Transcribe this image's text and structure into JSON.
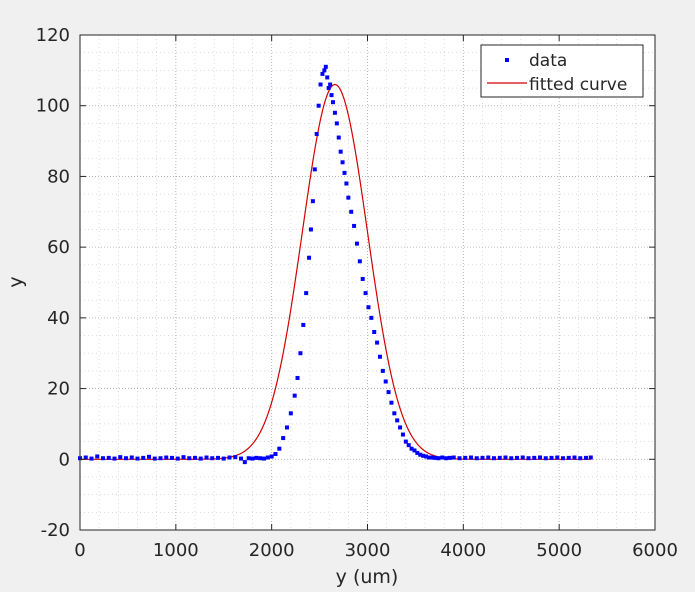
{
  "chart_data": {
    "type": "scatter",
    "title": "",
    "xlabel": "y (um)",
    "ylabel": "y",
    "xlim": [
      0,
      6000
    ],
    "ylim": [
      -20,
      120
    ],
    "xticks": [
      0,
      1000,
      2000,
      3000,
      4000,
      5000,
      6000
    ],
    "yticks": [
      -20,
      0,
      20,
      40,
      60,
      80,
      100,
      120
    ],
    "xtick_labels": [
      "0",
      "1000",
      "2000",
      "3000",
      "4000",
      "5000",
      "6000"
    ],
    "ytick_labels": [
      "-20",
      "0",
      "20",
      "40",
      "60",
      "80",
      "100",
      "120"
    ],
    "grid": true,
    "minor_grid": true,
    "legend_position": "top-right",
    "series": [
      {
        "name": "data",
        "style": "points",
        "color": "#0000ff",
        "x": [
          0,
          60,
          120,
          180,
          240,
          300,
          360,
          420,
          480,
          540,
          600,
          660,
          720,
          780,
          840,
          900,
          960,
          1020,
          1080,
          1140,
          1200,
          1260,
          1320,
          1380,
          1440,
          1500,
          1560,
          1620,
          1680,
          1720,
          1760,
          1800,
          1840,
          1880,
          1920,
          1960,
          2000,
          2040,
          2080,
          2120,
          2160,
          2200,
          2240,
          2270,
          2300,
          2330,
          2360,
          2390,
          2410,
          2430,
          2450,
          2470,
          2490,
          2510,
          2530,
          2550,
          2565,
          2580,
          2595,
          2610,
          2625,
          2640,
          2660,
          2680,
          2700,
          2720,
          2740,
          2760,
          2780,
          2800,
          2830,
          2860,
          2890,
          2920,
          2950,
          2980,
          3010,
          3040,
          3070,
          3100,
          3130,
          3160,
          3190,
          3220,
          3250,
          3280,
          3310,
          3340,
          3370,
          3400,
          3430,
          3460,
          3490,
          3520,
          3550,
          3580,
          3610,
          3640,
          3670,
          3700,
          3740,
          3780,
          3820,
          3860,
          3900,
          3960,
          4020,
          4080,
          4140,
          4200,
          4260,
          4320,
          4380,
          4440,
          4500,
          4560,
          4620,
          4680,
          4740,
          4800,
          4860,
          4920,
          4980,
          5040,
          5100,
          5160,
          5220,
          5280,
          5330
        ],
        "y": [
          0.3,
          0.5,
          0.2,
          0.8,
          0.3,
          0.4,
          0.2,
          0.6,
          0.3,
          0.5,
          0.2,
          0.4,
          0.7,
          0.2,
          0.3,
          0.5,
          0.4,
          0.2,
          0.6,
          0.3,
          0.4,
          0.2,
          0.5,
          0.3,
          0.4,
          0.2,
          0.5,
          0.6,
          0.2,
          -0.8,
          0.3,
          0.2,
          0.4,
          0.3,
          0.2,
          0.5,
          0.8,
          1.5,
          3,
          6,
          9,
          13,
          18,
          23,
          30,
          38,
          47,
          57,
          65,
          73,
          82,
          92,
          100,
          106,
          109,
          110,
          111,
          108,
          105,
          106,
          103,
          101,
          98,
          95,
          91,
          87,
          84,
          81,
          78,
          74,
          70,
          66,
          61,
          56,
          51,
          47,
          43,
          40,
          36,
          33,
          29,
          25,
          22,
          19,
          16,
          13,
          11,
          9,
          7,
          5,
          4,
          3,
          2.5,
          1.8,
          1.3,
          1,
          0.8,
          0.5,
          0.5,
          0.4,
          0.3,
          0.5,
          0.3,
          0.4,
          0.5,
          0.3,
          0.4,
          0.5,
          0.3,
          0.4,
          0.5,
          0.3,
          0.4,
          0.5,
          0.3,
          0.4,
          0.5,
          0.3,
          0.4,
          0.5,
          0.3,
          0.4,
          0.5,
          0.3,
          0.4,
          0.5,
          0.3,
          0.4,
          0.5
        ]
      },
      {
        "name": "fitted curve",
        "style": "line",
        "color": "#d40000",
        "model": "gaussian",
        "amplitude": 106,
        "center": 2660,
        "sigma": 340,
        "x_range": [
          0,
          5330
        ]
      }
    ]
  }
}
